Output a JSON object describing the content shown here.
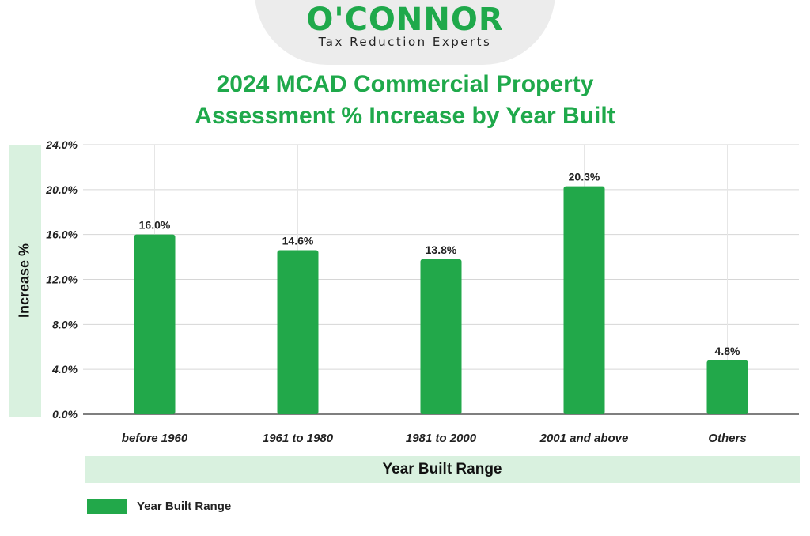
{
  "logo": {
    "name": "O'CONNOR",
    "tagline": "Tax Reduction Experts",
    "color": "#1fa94b"
  },
  "chart_data": {
    "type": "bar",
    "title_line1": "2024 MCAD Commercial Property",
    "title_line2": "Assessment % Increase by Year Built",
    "xlabel": "Year Built Range",
    "ylabel": "Increase %",
    "categories": [
      "before 1960",
      "1961 to 1980",
      "1981 to 2000",
      "2001 and above",
      "Others"
    ],
    "series": [
      {
        "name": "Year Built Range",
        "values": [
          16.0,
          14.6,
          13.8,
          20.3,
          4.8
        ],
        "value_labels": [
          "16.0%",
          "14.6%",
          "13.8%",
          "20.3%",
          "4.8%"
        ],
        "color": "#22a84a"
      }
    ],
    "yticks": [
      0,
      4,
      8,
      12,
      16,
      20,
      24
    ],
    "ytick_labels": [
      "0.0%",
      "4.0%",
      "8.0%",
      "12.0%",
      "16.0%",
      "20.0%",
      "24.0%"
    ],
    "ylim": [
      0,
      24
    ],
    "grid": true,
    "legend_position": "bottom-left"
  }
}
